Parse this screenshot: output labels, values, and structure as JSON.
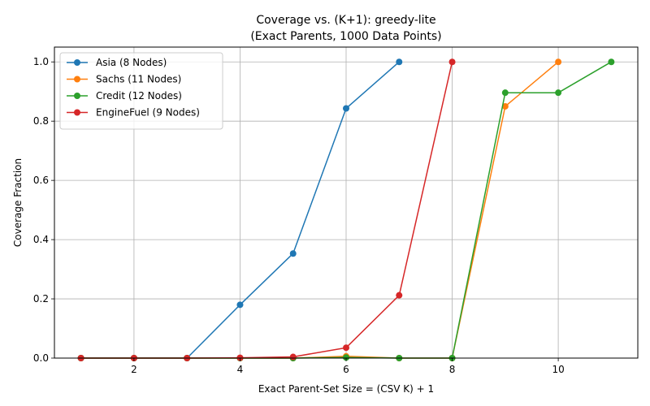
{
  "chart_data": {
    "type": "line",
    "title_lines": [
      "Coverage vs. (K+1): greedy-lite",
      "(Exact Parents, 1000 Data Points)"
    ],
    "xlabel": "Exact Parent-Set Size = (CSV K) + 1",
    "ylabel": "Coverage Fraction",
    "xlim": [
      0.5,
      11.5
    ],
    "ylim": [
      0,
      1.05
    ],
    "xticks": [
      2,
      4,
      6,
      8,
      10
    ],
    "yticks": [
      0.0,
      0.2,
      0.4,
      0.6,
      0.8,
      1.0
    ],
    "xtick_labels": [
      "2",
      "4",
      "6",
      "8",
      "10"
    ],
    "ytick_labels": [
      "0.0",
      "0.2",
      "0.4",
      "0.6",
      "0.8",
      "1.0"
    ],
    "grid": true,
    "legend_position": "top-left",
    "series": [
      {
        "name": "Asia (8 Nodes)",
        "color": "#1f77b4",
        "x": [
          1,
          2,
          3,
          4,
          5,
          6,
          7
        ],
        "y": [
          0.0,
          0.0,
          0.0,
          0.18,
          0.353,
          0.843,
          1.0
        ]
      },
      {
        "name": "Sachs (11 Nodes)",
        "color": "#ff7f0e",
        "x": [
          1,
          2,
          3,
          4,
          5,
          6,
          7,
          8,
          9,
          10
        ],
        "y": [
          0.0,
          0.0,
          0.0,
          0.0,
          0.0,
          0.006,
          0.0,
          0.0,
          0.85,
          1.0
        ]
      },
      {
        "name": "Credit (12 Nodes)",
        "color": "#2ca02c",
        "x": [
          1,
          2,
          3,
          4,
          5,
          6,
          7,
          8,
          9,
          10,
          11
        ],
        "y": [
          0.0,
          0.0,
          0.0,
          0.0,
          0.0,
          0.002,
          0.0,
          0.0,
          0.896,
          0.896,
          1.0
        ]
      },
      {
        "name": "EngineFuel (9 Nodes)",
        "color": "#d62728",
        "x": [
          1,
          2,
          3,
          4,
          5,
          6,
          7,
          8
        ],
        "y": [
          0.0,
          0.0,
          0.0,
          0.001,
          0.004,
          0.035,
          0.212,
          1.0
        ]
      }
    ]
  }
}
